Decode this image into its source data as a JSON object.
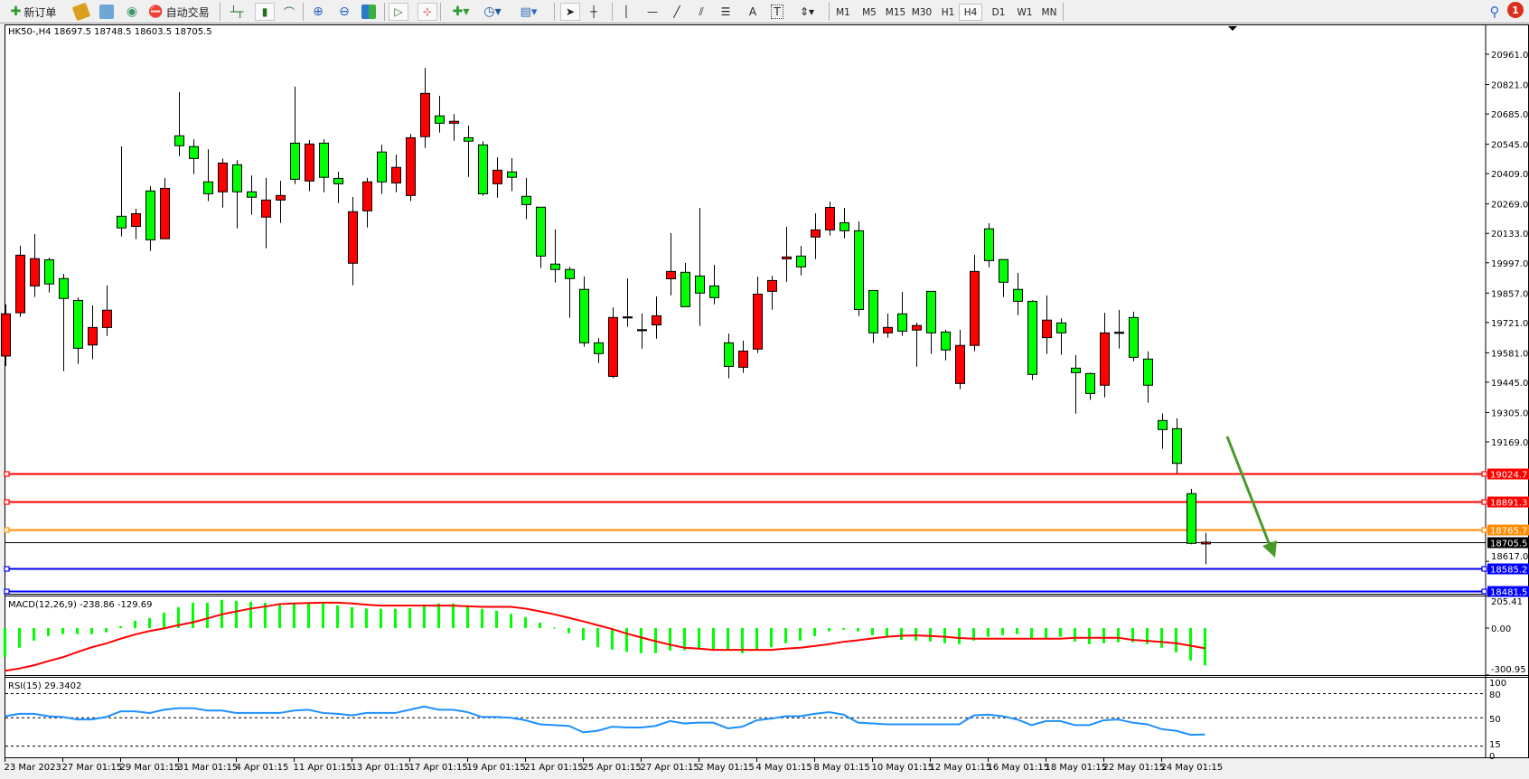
{
  "toolbar": {
    "new_order": "新订单",
    "auto_trading": "自动交易",
    "icons": [
      "new-order-icon",
      "metaeditor-icon",
      "market-watch-icon",
      "signals-icon",
      "auto-trading-icon",
      "bar-chart-icon",
      "candlestick-icon",
      "line-chart-icon",
      "zoom-in-icon",
      "zoom-out-icon",
      "tile-windows-icon",
      "autoscroll-icon",
      "chart-shift-icon",
      "indicators-icon",
      "periods-icon",
      "templates-icon",
      "cursor-icon",
      "crosshair-icon",
      "vertical-line-icon",
      "horizontal-line-icon",
      "trendline-icon",
      "equidistant-channel-icon",
      "fibonacci-icon",
      "text-icon",
      "text-label-icon",
      "arrows-icon",
      "search-icon",
      "notifications-icon"
    ],
    "timeframes": [
      "M1",
      "M5",
      "M15",
      "M30",
      "H1",
      "H4",
      "D1",
      "W1",
      "MN"
    ],
    "active_timeframe": "H4",
    "text_tool": "A",
    "label_tool": "T",
    "notification_count": "1"
  },
  "chart": {
    "header": "HK50-,H4  18697.5 18748.5 18603.5 18705.5",
    "symbol": "HK50-",
    "timeframe": "H4",
    "colors": {
      "up": "#ff0000",
      "down": "#00ff00",
      "macd_hist": "#00ff00",
      "signal": "#ff0000",
      "rsi": "#1e90ff",
      "arrow": "#4a9a2a"
    }
  },
  "chart_data": [
    {
      "type": "candlestick",
      "title": "HK50-,H4",
      "price_ticks": [
        "20961.0",
        "20821.0",
        "20685.0",
        "20545.0",
        "20409.0",
        "20269.0",
        "20133.0",
        "19997.0",
        "19857.0",
        "19721.0",
        "19581.0",
        "19445.0",
        "19305.0",
        "19169.0",
        "18617.0"
      ],
      "x_labels": [
        "23 Mar 2023",
        "27 Mar 01:15",
        "29 Mar 01:15",
        "31 Mar 01:15",
        "4 Apr 01:15",
        "11 Apr 01:15",
        "13 Apr 01:15",
        "17 Apr 01:15",
        "19 Apr 01:15",
        "21 Apr 01:15",
        "25 Apr 01:15",
        "27 Apr 01:15",
        "2 May 01:15",
        "4 May 01:15",
        "8 May 01:15",
        "10 May 01:15",
        "12 May 01:15",
        "16 May 01:15",
        "18 May 01:15",
        "22 May 01:15",
        "24 May 01:15"
      ],
      "ohlc_fields": [
        "open",
        "high",
        "low",
        "close"
      ],
      "ohlc": [
        [
          19566,
          19805,
          19520,
          19761
        ],
        [
          19766,
          20076,
          19747,
          20032
        ],
        [
          19890,
          20130,
          19839,
          20016
        ],
        [
          20011,
          20021,
          19860,
          19899
        ],
        [
          19924,
          19946,
          19496,
          19832
        ],
        [
          19823,
          19837,
          19530,
          19602
        ],
        [
          19617,
          19800,
          19551,
          19698
        ],
        [
          19698,
          19892,
          19659,
          19778
        ],
        [
          20212,
          20535,
          20119,
          20158
        ],
        [
          20165,
          20247,
          20106,
          20224
        ],
        [
          20329,
          20351,
          20052,
          20103
        ],
        [
          20108,
          20389,
          20108,
          20341
        ],
        [
          20584,
          20786,
          20490,
          20538
        ],
        [
          20534,
          20568,
          20407,
          20479
        ],
        [
          20371,
          20522,
          20282,
          20316
        ],
        [
          20325,
          20479,
          20252,
          20458
        ],
        [
          20450,
          20472,
          20156,
          20325
        ],
        [
          20325,
          20401,
          20219,
          20300
        ],
        [
          20208,
          20389,
          20064,
          20287
        ],
        [
          20287,
          20376,
          20181,
          20308
        ],
        [
          20550,
          20811,
          20361,
          20383
        ],
        [
          20375,
          20564,
          20328,
          20546
        ],
        [
          20550,
          20568,
          20323,
          20392
        ],
        [
          20387,
          20418,
          20273,
          20362
        ],
        [
          19995,
          20301,
          19893,
          20233
        ],
        [
          20237,
          20389,
          20160,
          20371
        ],
        [
          20509,
          20543,
          20315,
          20371
        ],
        [
          20366,
          20497,
          20323,
          20438
        ],
        [
          20308,
          20593,
          20282,
          20575
        ],
        [
          20580,
          20898,
          20528,
          20780
        ],
        [
          20676,
          20769,
          20599,
          20642
        ],
        [
          20642,
          20685,
          20561,
          20651
        ],
        [
          20575,
          20631,
          20394,
          20559
        ],
        [
          20542,
          20559,
          20307,
          20316
        ],
        [
          20362,
          20485,
          20298,
          20425
        ],
        [
          20417,
          20481,
          20328,
          20392
        ],
        [
          20304,
          20389,
          20198,
          20266
        ],
        [
          20254,
          20254,
          19972,
          20028
        ],
        [
          19991,
          20151,
          19906,
          19966
        ],
        [
          19966,
          19979,
          19743,
          19924
        ],
        [
          19874,
          19934,
          19609,
          19627
        ],
        [
          19627,
          19649,
          19534,
          19577
        ],
        [
          19472,
          19791,
          19464,
          19744
        ],
        [
          19747,
          19925,
          19701,
          19747
        ],
        [
          19688,
          19762,
          19600,
          19688
        ],
        [
          19710,
          19841,
          19646,
          19752
        ],
        [
          19923,
          20134,
          19847,
          19957
        ],
        [
          19953,
          19996,
          19794,
          19794
        ],
        [
          19936,
          20251,
          19705,
          19857
        ],
        [
          19890,
          19987,
          19805,
          19836
        ],
        [
          19627,
          19670,
          19463,
          19518
        ],
        [
          19514,
          19637,
          19488,
          19589
        ],
        [
          19598,
          19933,
          19580,
          19852
        ],
        [
          19865,
          19937,
          19780,
          19915
        ],
        [
          20015,
          20163,
          19909,
          20024
        ],
        [
          20028,
          20075,
          19939,
          19978
        ],
        [
          20116,
          20226,
          20014,
          20149
        ],
        [
          20149,
          20280,
          20123,
          20253
        ],
        [
          20182,
          20251,
          20110,
          20145
        ],
        [
          20145,
          20188,
          19751,
          19781
        ],
        [
          19869,
          19869,
          19626,
          19673
        ],
        [
          19673,
          19762,
          19651,
          19698
        ],
        [
          19761,
          19862,
          19659,
          19681
        ],
        [
          19686,
          19721,
          19517,
          19707
        ],
        [
          19865,
          19865,
          19576,
          19673
        ],
        [
          19677,
          19687,
          19546,
          19594
        ],
        [
          19439,
          19687,
          19413,
          19615
        ],
        [
          19615,
          20034,
          19588,
          19957
        ],
        [
          20154,
          20180,
          19977,
          20007
        ],
        [
          20012,
          20012,
          19839,
          19907
        ],
        [
          19874,
          19950,
          19755,
          19819
        ],
        [
          19819,
          19824,
          19455,
          19481
        ],
        [
          19651,
          19846,
          19576,
          19732
        ],
        [
          19719,
          19740,
          19572,
          19673
        ],
        [
          19510,
          19570,
          19300,
          19489
        ],
        [
          19485,
          19489,
          19363,
          19393
        ],
        [
          19431,
          19766,
          19375,
          19673
        ],
        [
          19676,
          19779,
          19601,
          19676
        ],
        [
          19744,
          19771,
          19542,
          19560
        ],
        [
          19552,
          19587,
          19350,
          19431
        ],
        [
          19268,
          19301,
          19137,
          19226
        ],
        [
          19230,
          19278,
          19024,
          19070
        ],
        [
          18930,
          18952,
          18696,
          18700
        ],
        [
          18697.5,
          18748.5,
          18603.5,
          18705.5
        ]
      ],
      "hlines": [
        {
          "price": "19024.7",
          "color": "#ff0000"
        },
        {
          "price": "18891.3",
          "color": "#ff0000"
        },
        {
          "price": "18765.7",
          "color": "#ff8c00"
        },
        {
          "price": "18705.5",
          "color": "#000000"
        },
        {
          "price": "18585.2",
          "color": "#0000ff"
        },
        {
          "price": "18481.5",
          "color": "#0000ff"
        }
      ],
      "ylim": [
        18470,
        21090
      ],
      "annotation": "down-arrow"
    },
    {
      "type": "bar+line",
      "title": "MACD(12,26,9) -238.86 -129.69",
      "y_ticks": [
        "205.41",
        "0.00",
        "-300.95"
      ],
      "ylim": [
        -300.95,
        205.41
      ],
      "macd": [
        -185,
        -126,
        -80,
        -51,
        -39,
        -39,
        -39,
        -27,
        12,
        47,
        64,
        99,
        134,
        163,
        163,
        181,
        175,
        169,
        163,
        152,
        163,
        163,
        158,
        146,
        134,
        126,
        123,
        123,
        128,
        152,
        158,
        158,
        146,
        123,
        111,
        91,
        70,
        35,
        3,
        -33,
        -78,
        -123,
        -138,
        -152,
        -161,
        -161,
        -144,
        -142,
        -134,
        -142,
        -138,
        -161,
        -142,
        -123,
        -97,
        -80,
        -51,
        -21,
        -10,
        -21,
        -45,
        -51,
        -76,
        -80,
        -86,
        -97,
        -103,
        -80,
        -56,
        -45,
        -39,
        -64,
        -68,
        -56,
        -86,
        -103,
        -97,
        -91,
        -91,
        -103,
        -126,
        -156,
        -208,
        -238.86
      ],
      "signal": [
        -274,
        -259,
        -239,
        -212,
        -187,
        -154,
        -123,
        -99,
        -68,
        -41,
        -19,
        -2,
        19,
        37,
        62,
        88,
        107,
        125,
        138,
        154,
        158,
        161,
        163,
        163,
        158,
        150,
        144,
        144,
        144,
        144,
        144,
        144,
        140,
        136,
        136,
        136,
        125,
        107,
        88,
        66,
        43,
        18,
        -6,
        -35,
        -60,
        -84,
        -107,
        -126,
        -132,
        -140,
        -140,
        -140,
        -140,
        -140,
        -132,
        -126,
        -115,
        -103,
        -88,
        -78,
        -66,
        -56,
        -49,
        -47,
        -51,
        -56,
        -64,
        -68,
        -68,
        -68,
        -68,
        -68,
        -68,
        -68,
        -62,
        -62,
        -62,
        -62,
        -76,
        -82,
        -89,
        -97,
        -113,
        -129.69
      ]
    },
    {
      "type": "line",
      "title": "RSI(15) 29.3402",
      "y_ticks": [
        "100",
        "80",
        "50",
        "15",
        "0"
      ],
      "levels": [
        80,
        50,
        15
      ],
      "ylim": [
        0,
        100
      ],
      "values": [
        52,
        55,
        55,
        52,
        51,
        48,
        48,
        51,
        58,
        58,
        56,
        60,
        62,
        62,
        59,
        59,
        56,
        56,
        56,
        56,
        59,
        60,
        56,
        55,
        53,
        56,
        56,
        56,
        60,
        64,
        60,
        60,
        57,
        51,
        51,
        50,
        47,
        42,
        41,
        40,
        32,
        34,
        39,
        38,
        38,
        40,
        46,
        43,
        44,
        44,
        37,
        39,
        47,
        49,
        52,
        52,
        55,
        57,
        54,
        44,
        43,
        42,
        42,
        42,
        42,
        42,
        42,
        53,
        54,
        52,
        48,
        41,
        46,
        46,
        41,
        41,
        47,
        48,
        44,
        42,
        36,
        34,
        29,
        29.34
      ]
    }
  ]
}
